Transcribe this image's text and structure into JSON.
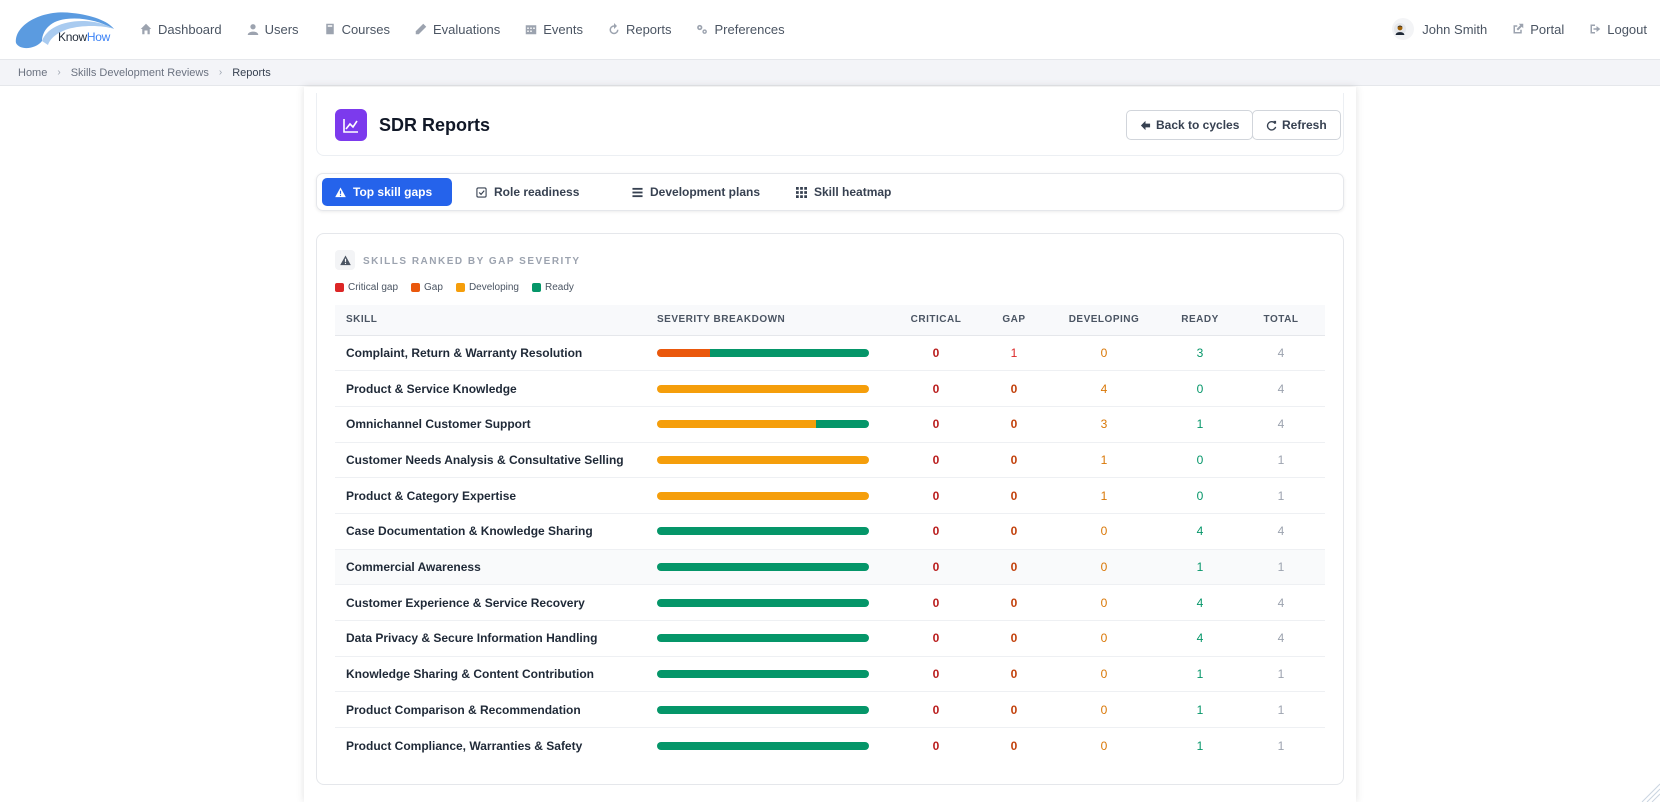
{
  "nav": {
    "logo_know": "Know",
    "logo_how": "How",
    "items": [
      {
        "label": "Dashboard",
        "icon": "home-icon"
      },
      {
        "label": "Users",
        "icon": "user-icon"
      },
      {
        "label": "Courses",
        "icon": "book-icon"
      },
      {
        "label": "Evaluations",
        "icon": "pencil-icon"
      },
      {
        "label": "Events",
        "icon": "calendar-icon"
      },
      {
        "label": "Reports",
        "icon": "refresh-icon"
      },
      {
        "label": "Preferences",
        "icon": "cogs-icon"
      }
    ],
    "user_name": "John Smith",
    "portal_label": "Portal",
    "logout_label": "Logout"
  },
  "breadcrumb": {
    "home": "Home",
    "section": "Skills Development Reviews",
    "current": "Reports"
  },
  "header": {
    "title": "SDR Reports",
    "back_label": "Back to cycles",
    "refresh_label": "Refresh"
  },
  "tabs": [
    {
      "label": "Top skill gaps",
      "active": true
    },
    {
      "label": "Role readiness",
      "active": false
    },
    {
      "label": "Development plans",
      "active": false
    },
    {
      "label": "Skill heatmap",
      "active": false
    }
  ],
  "section": {
    "title": "SKILLS RANKED BY GAP SEVERITY",
    "legend": [
      {
        "label": "Critical gap",
        "color": "#dc2626"
      },
      {
        "label": "Gap",
        "color": "#ea580c"
      },
      {
        "label": "Developing",
        "color": "#f59e0b"
      },
      {
        "label": "Ready",
        "color": "#059669"
      }
    ]
  },
  "table": {
    "headers": [
      "SKILL",
      "SEVERITY BREAKDOWN",
      "CRITICAL",
      "GAP",
      "DEVELOPING",
      "READY",
      "TOTAL"
    ],
    "rows": [
      {
        "skill": "Complaint, Return & Warranty Resolution",
        "critical": 0,
        "gap": 1,
        "developing": 0,
        "ready": 3,
        "total": 4
      },
      {
        "skill": "Product & Service Knowledge",
        "critical": 0,
        "gap": 0,
        "developing": 4,
        "ready": 0,
        "total": 4
      },
      {
        "skill": "Omnichannel Customer Support",
        "critical": 0,
        "gap": 0,
        "developing": 3,
        "ready": 1,
        "total": 4
      },
      {
        "skill": "Customer Needs Analysis & Consultative Selling",
        "critical": 0,
        "gap": 0,
        "developing": 1,
        "ready": 0,
        "total": 1
      },
      {
        "skill": "Product & Category Expertise",
        "critical": 0,
        "gap": 0,
        "developing": 1,
        "ready": 0,
        "total": 1
      },
      {
        "skill": "Case Documentation & Knowledge Sharing",
        "critical": 0,
        "gap": 0,
        "developing": 0,
        "ready": 4,
        "total": 4
      },
      {
        "skill": "Commercial Awareness",
        "critical": 0,
        "gap": 0,
        "developing": 0,
        "ready": 1,
        "total": 1
      },
      {
        "skill": "Customer Experience & Service Recovery",
        "critical": 0,
        "gap": 0,
        "developing": 0,
        "ready": 4,
        "total": 4
      },
      {
        "skill": "Data Privacy & Secure Information Handling",
        "critical": 0,
        "gap": 0,
        "developing": 0,
        "ready": 4,
        "total": 4
      },
      {
        "skill": "Knowledge Sharing & Content Contribution",
        "critical": 0,
        "gap": 0,
        "developing": 0,
        "ready": 1,
        "total": 1
      },
      {
        "skill": "Product Comparison & Recommendation",
        "critical": 0,
        "gap": 0,
        "developing": 0,
        "ready": 1,
        "total": 1
      },
      {
        "skill": "Product Compliance, Warranties & Safety",
        "critical": 0,
        "gap": 0,
        "developing": 0,
        "ready": 1,
        "total": 1
      }
    ]
  }
}
